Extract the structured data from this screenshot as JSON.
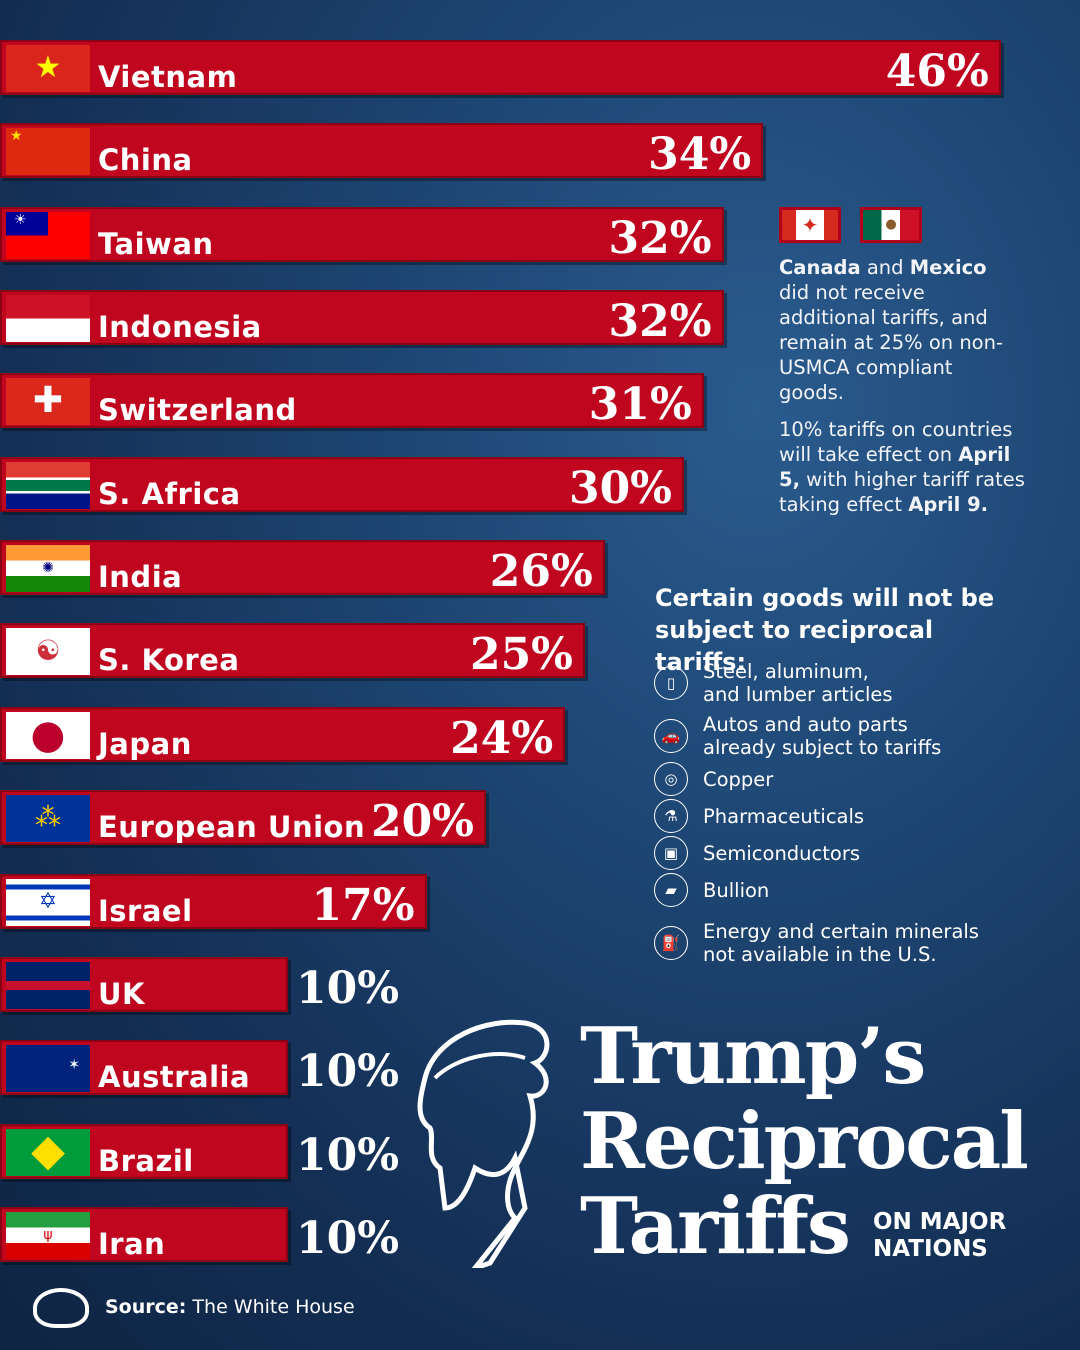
{
  "chart_data": {
    "type": "bar",
    "orientation": "horizontal",
    "title": "Trump's Reciprocal Tariffs",
    "subtitle": "ON MAJOR NATIONS",
    "categories": [
      "Vietnam",
      "China",
      "Taiwan",
      "Indonesia",
      "Switzerland",
      "S. Africa",
      "India",
      "S. Korea",
      "Japan",
      "European Union",
      "Israel",
      "UK",
      "Australia",
      "Brazil",
      "Iran"
    ],
    "values": [
      46,
      34,
      32,
      32,
      31,
      30,
      26,
      25,
      24,
      20,
      17,
      10,
      10,
      10,
      10
    ],
    "labels": [
      "46%",
      "34%",
      "32%",
      "32%",
      "31%",
      "30%",
      "26%",
      "25%",
      "24%",
      "20%",
      "17%",
      "10%",
      "10%",
      "10%",
      "10%"
    ],
    "flags": [
      "vietnam-flag",
      "china-flag",
      "taiwan-flag",
      "indonesia-flag",
      "switzerland-flag",
      "south-africa-flag",
      "india-flag",
      "south-korea-flag",
      "japan-flag",
      "eu-flag",
      "israel-flag",
      "uk-flag",
      "australia-flag",
      "brazil-flag",
      "iran-flag"
    ],
    "bar_color": "#c0061f",
    "grid": false
  },
  "note_canada_mexico": {
    "b1": "Canada",
    "t1": " and ",
    "b2": "Mexico",
    "t2": " did not receive additional tariffs, and remain at 25% on non-USMCA compliant goods."
  },
  "note_dates": {
    "t1": "10% tariffs on countries will take effect on ",
    "b1": "April 5,",
    "t2": " with higher tariff rates taking effect ",
    "b2": "April 9."
  },
  "goods": {
    "title": "Certain goods will not be subject to reciprocal tariffs:",
    "items": [
      {
        "icon": "can-icon",
        "glyph": "▯",
        "text": "Steel, aluminum,\nand lumber articles"
      },
      {
        "icon": "car-icon",
        "glyph": "🚗",
        "text": "Autos and auto parts\nalready subject to tariffs"
      },
      {
        "icon": "copper-roll-icon",
        "glyph": "◎",
        "text": "Copper"
      },
      {
        "icon": "pill-bottle-icon",
        "glyph": "⚗",
        "text": "Pharmaceuticals"
      },
      {
        "icon": "chip-icon",
        "glyph": "▣",
        "text": "Semiconductors"
      },
      {
        "icon": "gold-bars-icon",
        "glyph": "▰",
        "text": "Bullion"
      },
      {
        "icon": "oil-pump-icon",
        "glyph": "⛽",
        "text": "Energy and certain minerals\nnot available in the U.S."
      }
    ]
  },
  "title": {
    "line1": "Trump’s",
    "line2": "Reciprocal",
    "line3": "Tariffs",
    "sub": "ON MAJOR\nNATIONS"
  },
  "source": {
    "label": "Source:",
    "value": " The White House"
  }
}
